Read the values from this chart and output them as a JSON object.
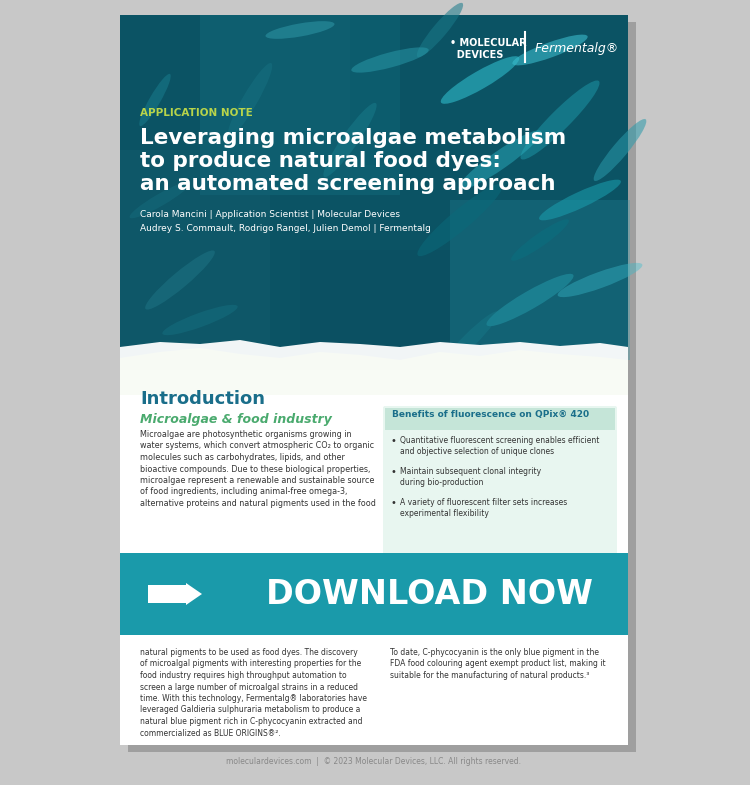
{
  "bg_outer": "#c8c8c8",
  "bg_page": "#ffffff",
  "header_bg": "#0d5c6e",
  "app_note_color": "#b8d44a",
  "title_color": "#ffffff",
  "author_color": "#ffffff",
  "intro_title_color": "#1a6e8a",
  "subheading_color": "#4aaa6e",
  "body_color": "#333333",
  "benefits_title_color": "#1a6e8a",
  "download_bg": "#1a9aaa",
  "download_text": "#ffffff",
  "footer_color": "#888888",
  "wave_green": "#7ab840",
  "wave_white": "#ffffff",
  "title_line1": "Leveraging microalgae metabolism",
  "title_line2": "to produce natural food dyes:",
  "title_line3": "an automated screening approach",
  "app_note_label": "APPLICATION NOTE",
  "author1": "Carola Mancini | Application Scientist | Molecular Devices",
  "author2": "Audrey S. Commault, Rodrigo Rangel, Julien Demol | Fermentalg",
  "intro_title": "Introduction",
  "sub1_title": "Microalgae & food industry",
  "body1": "Microalgae are photosynthetic organisms growing in\nwater systems, which convert atmospheric CO₂ to organic\nmolecules such as carbohydrates, lipids, and other\nbioactive compounds. Due to these biological properties,\nmicroalgae represent a renewable and sustainable source\nof food ingredients, including animal-free omega-3,\nalternative proteins and natural pigments used in the food",
  "benefits_title": "Benefits of fluorescence on QPix® 420",
  "benefit1": "Quantitative fluorescent screening enables efficient\nand objective selection of unique clones",
  "benefit2": "Maintain subsequent clonal integrity\nduring bio-production",
  "benefit3": "A variety of fluorescent filter sets increases\nexperimental flexibility",
  "download_label": "DOWNLOAD NOW",
  "body2_left": "natural pigments to be used as food dyes. The discovery\nof microalgal pigments with interesting properties for the\nfood industry requires high throughput automation to\nscreen a large number of microalgal strains in a reduced\ntime. With this technology, Fermentalg® laboratories have\nleveraged Galdieria sulphuraria metabolism to produce a\nnatural blue pigment rich in C-phycocyanin extracted and\ncommercialized as BLUE ORIGINS®².",
  "body2_right": "To date, C-phycocyanin is the only blue pigment in the\nFDA food colouring agent exempt product list, making it\nsuitable for the manufacturing of natural products.³",
  "footer_text": "moleculardevices.com  |  © 2023 Molecular Devices, LLC. All rights reserved.",
  "ferm_logo": "Fermentalg®",
  "rod_params": [
    [
      480,
      80,
      90,
      18,
      -30,
      "#2aacbc",
      0.7
    ],
    [
      560,
      120,
      110,
      20,
      -45,
      "#1a8a9a",
      0.65
    ],
    [
      550,
      50,
      80,
      15,
      -20,
      "#3abccc",
      0.6
    ],
    [
      440,
      30,
      70,
      14,
      -50,
      "#1a7a8a",
      0.55
    ],
    [
      500,
      160,
      100,
      18,
      -35,
      "#2aacbc",
      0.5
    ],
    [
      580,
      200,
      90,
      16,
      -25,
      "#1a9aaa",
      0.6
    ],
    [
      460,
      220,
      110,
      20,
      -40,
      "#0a6a7a",
      0.55
    ],
    [
      390,
      60,
      80,
      15,
      -15,
      "#2a9cac",
      0.5
    ],
    [
      350,
      140,
      90,
      16,
      -55,
      "#1a8090",
      0.45
    ],
    [
      300,
      30,
      70,
      13,
      -10,
      "#3aacbc",
      0.4
    ],
    [
      250,
      100,
      85,
      15,
      -60,
      "#1a7a8a",
      0.35
    ],
    [
      530,
      300,
      100,
      18,
      -30,
      "#2aacbc",
      0.4
    ],
    [
      470,
      340,
      80,
      14,
      -45,
      "#1a8090",
      0.35
    ],
    [
      600,
      280,
      90,
      16,
      -20,
      "#3abccc",
      0.4
    ],
    [
      540,
      240,
      70,
      13,
      -35,
      "#0a7080",
      0.5
    ],
    [
      620,
      150,
      80,
      15,
      -50,
      "#2a9aaa",
      0.55
    ],
    [
      160,
      200,
      70,
      12,
      -30,
      "#1a7a8a",
      0.3
    ],
    [
      180,
      280,
      90,
      16,
      -40,
      "#2a8a9a",
      0.3
    ],
    [
      200,
      320,
      80,
      14,
      -20,
      "#1a8090",
      0.3
    ],
    [
      155,
      100,
      60,
      11,
      -60,
      "#2aacbc",
      0.25
    ]
  ]
}
